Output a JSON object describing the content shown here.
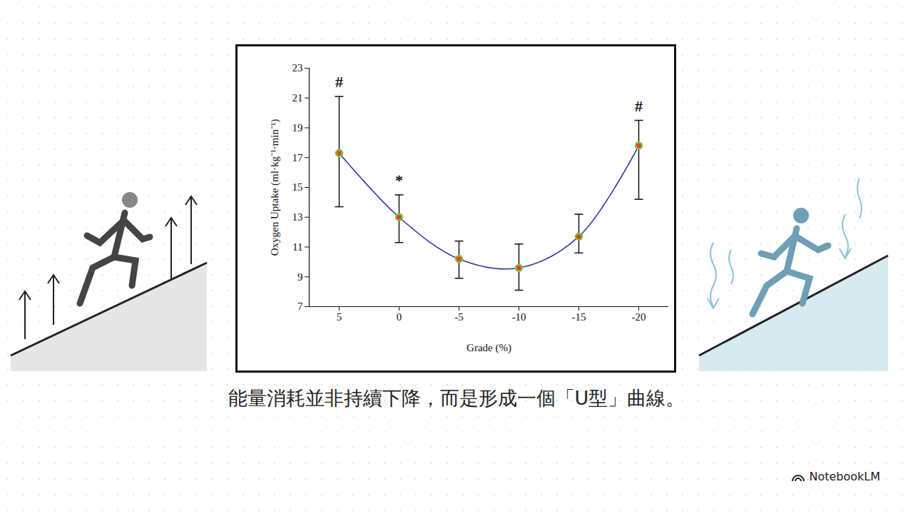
{
  "chart_data": {
    "type": "line",
    "y_label": "Oxygen Uptake (ml·kg⁻¹·min⁻¹)",
    "x_label": "Grade (%)",
    "x": [
      5,
      0,
      -5,
      -10,
      -15,
      -20
    ],
    "values": [
      17.3,
      13.0,
      10.2,
      9.6,
      11.7,
      17.8
    ],
    "error_low": [
      13.7,
      11.3,
      8.9,
      8.1,
      10.6,
      14.2
    ],
    "error_high": [
      21.1,
      14.5,
      11.4,
      11.2,
      13.2,
      19.5
    ],
    "xlim": [
      7.5,
      -22.5
    ],
    "xticks": [
      5,
      0,
      -5,
      -10,
      -15,
      -20
    ],
    "ylim": [
      7,
      23
    ],
    "yticks": [
      7,
      9,
      11,
      13,
      15,
      17,
      19,
      21,
      23
    ],
    "color": "#2b3a9e",
    "marker": "circle",
    "annotations": [
      {
        "x": 5,
        "text": "#"
      },
      {
        "x": 0,
        "text": "*"
      },
      {
        "x": -20,
        "text": "#"
      }
    ],
    "caption": "能量消耗並非持續下降，而是形成一個「U型」曲線。",
    "footer": "NotebookLM"
  }
}
